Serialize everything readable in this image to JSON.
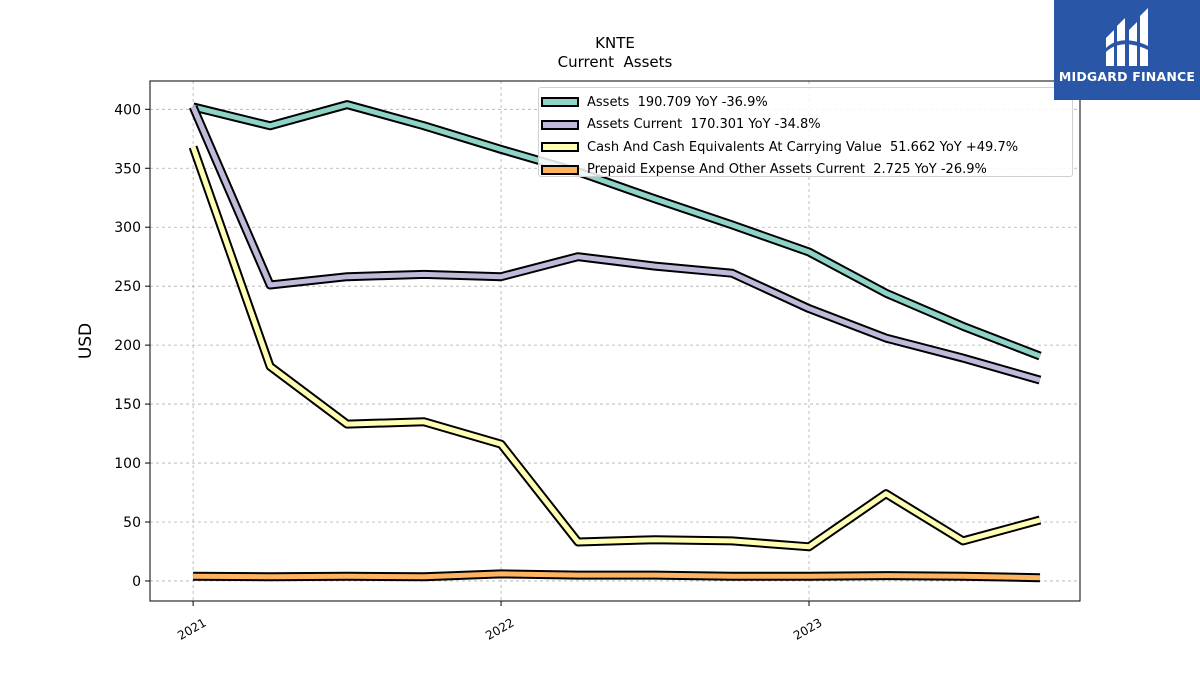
{
  "chart_data": {
    "type": "line",
    "title": "KNTE",
    "subtitle": "Current  Assets",
    "ylabel": "USD",
    "xlabel": "",
    "ylim": [
      -17,
      424
    ],
    "xlim": [
      2020.86,
      2023.88
    ],
    "yticks": [
      0,
      50,
      100,
      150,
      200,
      250,
      300,
      350,
      400
    ],
    "xticks": [
      2021,
      2022,
      2023
    ],
    "xtick_labels": [
      "2021",
      "2022",
      "2023"
    ],
    "grid": true,
    "legend_position": "top-right",
    "x": [
      2021.0,
      2021.25,
      2021.5,
      2021.75,
      2022.0,
      2022.25,
      2022.5,
      2022.75,
      2023.0,
      2023.25,
      2023.5,
      2023.75
    ],
    "series": [
      {
        "name": "Assets",
        "label": "Assets  190.709 YoY -36.9%",
        "color": "#8dd3c7",
        "values": [
          402,
          386,
          404,
          386,
          366,
          347,
          324,
          302,
          279,
          244,
          216,
          190.709
        ]
      },
      {
        "name": "Assets Current",
        "label": "Assets Current  170.301 YoY -34.8%",
        "color": "#bebada",
        "values": [
          402,
          251,
          258,
          260,
          258,
          275,
          267,
          261,
          231,
          206,
          189,
          170.301
        ]
      },
      {
        "name": "Cash And Cash Equivalents At Carrying Value",
        "label": "Cash And Cash Equivalents At Carrying Value  51.662 YoY +49.7%",
        "color": "#ffffb3",
        "values": [
          368,
          182,
          133,
          135,
          116,
          33,
          35,
          34,
          29,
          74,
          34,
          51.662
        ]
      },
      {
        "name": "Prepaid Expense And Other Assets Current",
        "label": "Prepaid Expense And Other Assets Current  2.725 YoY -26.9%",
        "color": "#fdb462",
        "values": [
          4,
          3.5,
          4,
          3.5,
          6,
          5,
          5,
          4,
          4,
          4.5,
          4,
          2.725
        ]
      }
    ]
  },
  "logo": {
    "text": "MIDGARD FINANCE"
  }
}
